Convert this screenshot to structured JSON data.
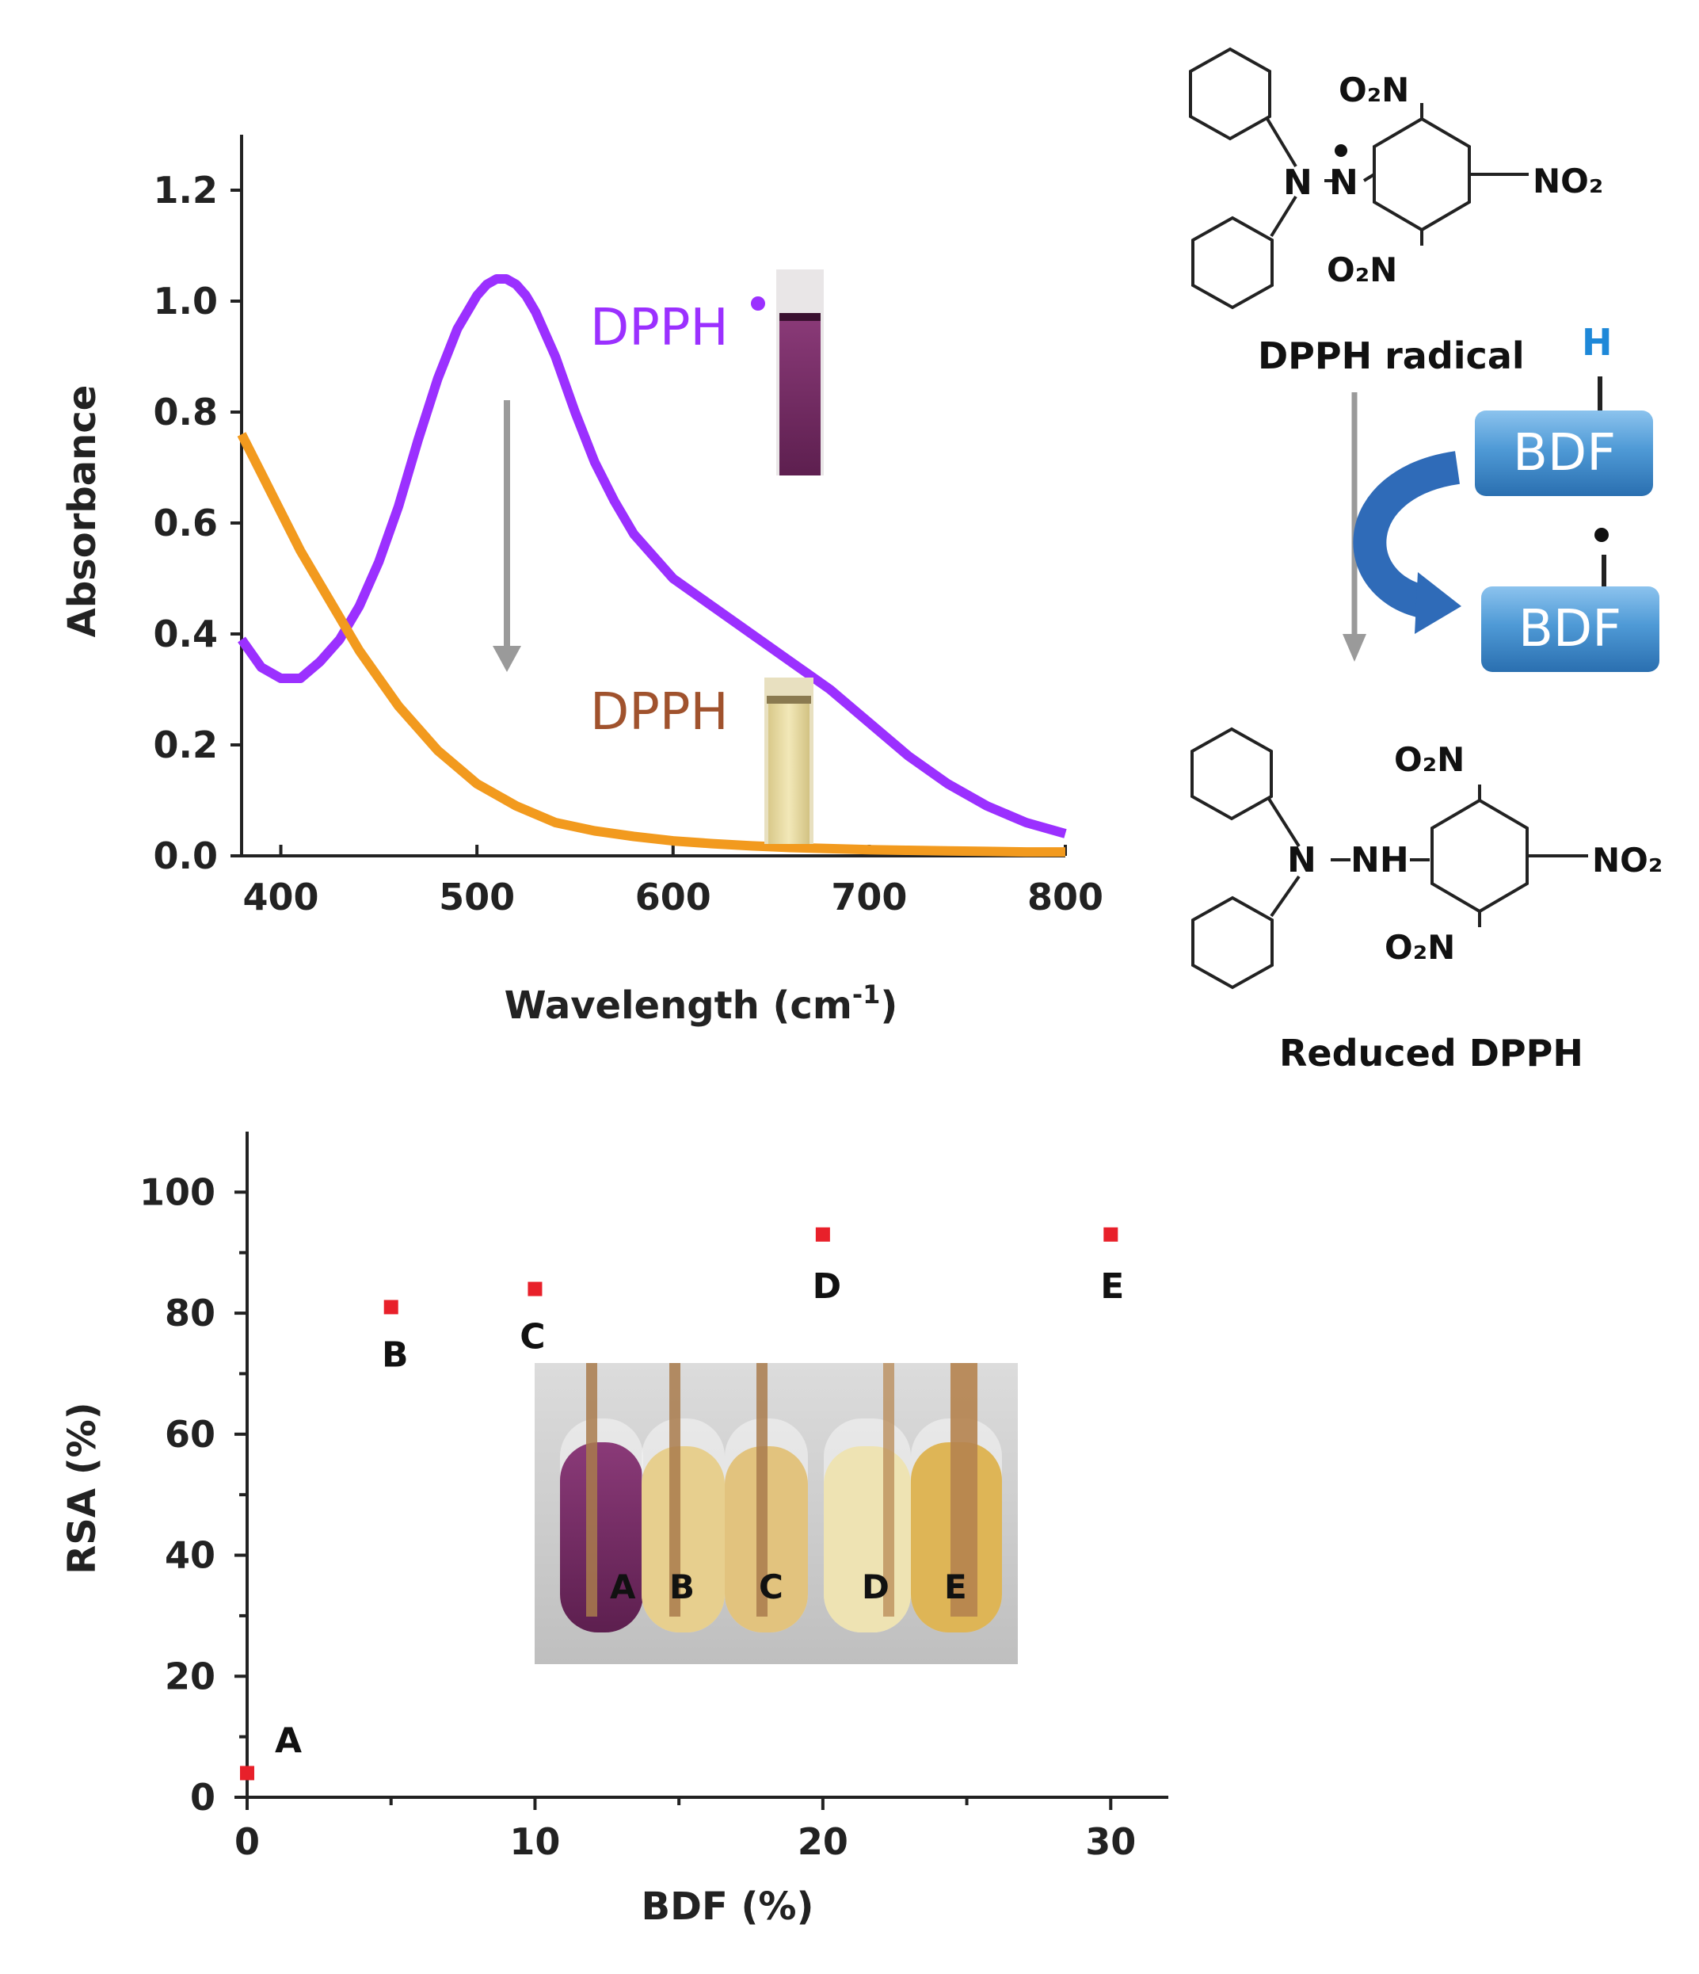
{
  "colors": {
    "purple": "#9b30ff",
    "orange": "#f29a1e",
    "point": "#e8202a",
    "axis": "#222222",
    "arrow": "#9a9a9a",
    "h_blue": "#1e88d8",
    "box_blue": "#3f8fd0"
  },
  "chart_data": [
    {
      "type": "line",
      "xlabel": "Wavelength (cm-1)",
      "ylabel": "Absorbance",
      "xlim": [
        380,
        800
      ],
      "ylim": [
        0,
        1.3
      ],
      "x_ticks": [
        "400",
        "500",
        "600",
        "700",
        "800"
      ],
      "y_ticks": [
        "0.0",
        "0.2",
        "0.4",
        "0.6",
        "0.8",
        "1.0",
        "1.2"
      ],
      "series": [
        {
          "name": "DPPH",
          "label_text": "DPPH",
          "radical_dot": "•",
          "color_key": "purple",
          "x": [
            380,
            390,
            400,
            410,
            420,
            430,
            440,
            450,
            460,
            470,
            480,
            490,
            500,
            505,
            510,
            515,
            520,
            525,
            530,
            540,
            550,
            560,
            570,
            580,
            590,
            600,
            620,
            640,
            660,
            680,
            700,
            720,
            740,
            760,
            780,
            800
          ],
          "y": [
            0.39,
            0.34,
            0.32,
            0.32,
            0.35,
            0.39,
            0.45,
            0.53,
            0.63,
            0.75,
            0.86,
            0.95,
            1.01,
            1.03,
            1.04,
            1.04,
            1.03,
            1.01,
            0.98,
            0.9,
            0.8,
            0.71,
            0.64,
            0.58,
            0.54,
            0.5,
            0.45,
            0.4,
            0.35,
            0.3,
            0.24,
            0.18,
            0.13,
            0.09,
            0.06,
            0.04
          ]
        },
        {
          "name": "DPPH (reduced)",
          "label_text": "DPPH",
          "color_key": "orange",
          "x": [
            380,
            390,
            400,
            410,
            420,
            430,
            440,
            450,
            460,
            470,
            480,
            490,
            500,
            520,
            540,
            560,
            580,
            600,
            620,
            640,
            660,
            680,
            700,
            720,
            740,
            760,
            780,
            800
          ],
          "y": [
            0.76,
            0.69,
            0.62,
            0.55,
            0.49,
            0.43,
            0.37,
            0.32,
            0.27,
            0.23,
            0.19,
            0.16,
            0.13,
            0.09,
            0.06,
            0.045,
            0.035,
            0.027,
            0.022,
            0.018,
            0.015,
            0.013,
            0.011,
            0.01,
            0.009,
            0.008,
            0.007,
            0.007
          ]
        }
      ]
    },
    {
      "type": "scatter",
      "xlabel": "BDF (%)",
      "ylabel": "RSA (%)",
      "xlim": [
        0,
        32
      ],
      "ylim": [
        0,
        110
      ],
      "x_ticks": [
        "0",
        "10",
        "20",
        "30"
      ],
      "y_ticks": [
        "0",
        "20",
        "40",
        "60",
        "80",
        "100"
      ],
      "points": [
        {
          "label": "A",
          "x": 0,
          "y": 4
        },
        {
          "label": "B",
          "x": 5,
          "y": 81
        },
        {
          "label": "C",
          "x": 10,
          "y": 84
        },
        {
          "label": "D",
          "x": 20,
          "y": 93
        },
        {
          "label": "E",
          "x": 30,
          "y": 93
        }
      ]
    }
  ],
  "scheme": {
    "o2n": "O₂N",
    "no2": "NO₂",
    "n": "N",
    "n_radical": "N",
    "nh": "NH",
    "h": "H",
    "radical_dot": "•",
    "dpph_radical_label": "DPPH radical",
    "reduced_label": "Reduced DPPH",
    "bdf_top": "BDF",
    "bdf_bottom": "BDF"
  },
  "inset_tubes": {
    "labels": [
      "A",
      "B",
      "C",
      "D",
      "E"
    ]
  }
}
